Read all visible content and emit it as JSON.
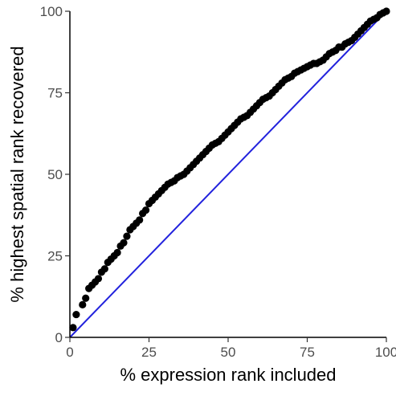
{
  "chart_data": {
    "type": "scatter",
    "title": "",
    "xlabel": "% expression rank included",
    "ylabel": "% highest spatial rank recovered",
    "xlim": [
      0,
      100
    ],
    "ylim": [
      0,
      100
    ],
    "x_ticks": [
      0,
      25,
      50,
      75,
      100
    ],
    "y_ticks": [
      0,
      25,
      50,
      75,
      100
    ],
    "grid": false,
    "legend": "none",
    "colors": {
      "points": "#000000",
      "reference_line": "#2222dd",
      "axis": "#000000",
      "tick_label": "#4d4d4d"
    },
    "reference_line": {
      "x": [
        0,
        100
      ],
      "y": [
        0,
        100
      ]
    },
    "series": [
      {
        "x": [
          1,
          2,
          4,
          5,
          6,
          7,
          8,
          9,
          10,
          11,
          12,
          13,
          14,
          15,
          16,
          17,
          18,
          19,
          20,
          21,
          22,
          23,
          24,
          25,
          26,
          27,
          28,
          29,
          30,
          31,
          32,
          33,
          34,
          35,
          36,
          37,
          38,
          39,
          40,
          41,
          42,
          43,
          44,
          45,
          46,
          47,
          48,
          49,
          50,
          51,
          52,
          53,
          54,
          55,
          56,
          57,
          58,
          59,
          60,
          61,
          62,
          63,
          64,
          65,
          66,
          67,
          68,
          69,
          70,
          71,
          72,
          73,
          74,
          75,
          76,
          77,
          78,
          79,
          80,
          81,
          82,
          83,
          84,
          85,
          86,
          87,
          88,
          89,
          90,
          91,
          92,
          93,
          94,
          95,
          96,
          97,
          98,
          99,
          100
        ],
        "y": [
          3,
          7,
          10,
          12,
          15,
          16,
          17,
          18,
          20,
          21,
          23,
          24,
          25,
          26,
          28,
          29,
          31,
          33,
          34,
          35,
          36,
          38,
          39,
          41,
          42,
          43,
          44,
          45,
          46,
          47,
          47.5,
          48,
          49,
          49.5,
          50,
          51,
          52,
          53,
          54,
          55,
          56,
          57,
          58,
          59,
          59.5,
          60,
          61,
          62,
          63,
          64,
          65,
          66,
          67,
          67.5,
          68,
          69,
          70,
          71,
          72,
          73,
          73.5,
          74,
          75,
          76,
          77,
          78,
          79,
          79.5,
          80,
          81,
          81.5,
          82,
          82.5,
          83,
          83.5,
          84,
          84,
          84.5,
          85,
          86,
          87,
          87.5,
          88,
          89,
          89,
          90,
          90.5,
          91,
          92,
          93,
          94,
          95,
          96,
          97,
          97.5,
          98,
          99,
          99.5,
          100
        ]
      }
    ]
  }
}
